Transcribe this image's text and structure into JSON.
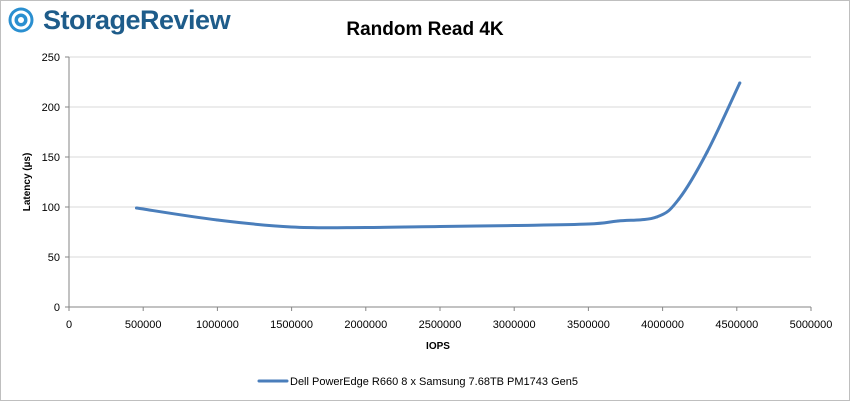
{
  "logo": {
    "text": "StorageReview",
    "icon": "storagereview-logo-icon"
  },
  "colors": {
    "series": "#4a7ebb",
    "grid": "#d9d9d9",
    "axis": "#868686",
    "logo": "#1e5c8a"
  },
  "chart_data": {
    "type": "line",
    "title": "Random Read 4K",
    "xlabel": "IOPS",
    "ylabel": "Latency (µs)",
    "xlim": [
      0,
      5000000
    ],
    "ylim": [
      0,
      250
    ],
    "xticks": [
      0,
      500000,
      1000000,
      1500000,
      2000000,
      2500000,
      3000000,
      3500000,
      4000000,
      4500000,
      5000000
    ],
    "yticks": [
      0,
      50,
      100,
      150,
      200,
      250
    ],
    "grid": "horizontal",
    "legend_position": "bottom",
    "series": [
      {
        "name": "Dell PowerEdge R660 8 x Samsung 7.68TB PM1743 Gen5",
        "color": "#4a7ebb",
        "x": [
          455000,
          1000000,
          1500000,
          2000000,
          2500000,
          3000000,
          3500000,
          3700000,
          3960000,
          4110000,
          4300000,
          4520000
        ],
        "y": [
          99,
          87,
          80,
          79.5,
          80.5,
          81.5,
          83,
          86,
          90,
          108,
          155,
          224
        ]
      }
    ]
  }
}
